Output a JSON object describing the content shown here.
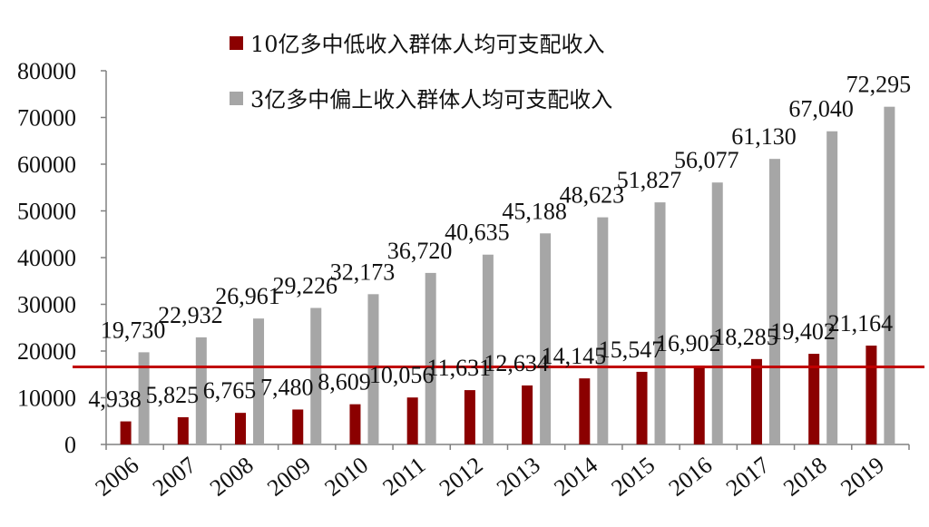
{
  "chart_data": {
    "type": "bar",
    "title": "",
    "xlabel": "",
    "ylabel": "",
    "ylim": [
      0,
      80000
    ],
    "yticks": [
      "0",
      "10000",
      "20000",
      "30000",
      "40000",
      "50000",
      "60000",
      "70000",
      "80000"
    ],
    "categories": [
      "2006",
      "2007",
      "2008",
      "2009",
      "2010",
      "2011",
      "2012",
      "2013",
      "2014",
      "2015",
      "2016",
      "2017",
      "2018",
      "2019"
    ],
    "series": [
      {
        "name": "10亿多中低收入群体人均可支配收入",
        "color": "#8B0000",
        "values": [
          4938,
          5825,
          6765,
          7480,
          8609,
          10056,
          11631,
          12634,
          14145,
          15547,
          16902,
          18285,
          19402,
          21164
        ],
        "labels": [
          "4,938",
          "5,825",
          "6,765",
          "7,480",
          "8,609",
          "10,056",
          "11,631",
          "12,634",
          "14,145",
          "15,547",
          "16,902",
          "18,285",
          "19,402",
          "21,164"
        ]
      },
      {
        "name": "3亿多中偏上收入群体人均可支配收入",
        "color": "#A6A6A6",
        "values": [
          19730,
          22932,
          26961,
          29226,
          32173,
          36720,
          40635,
          45188,
          48623,
          51827,
          56077,
          61130,
          67040,
          72295
        ],
        "labels": [
          "19,730",
          "22,932",
          "26,961",
          "29,226",
          "32,173",
          "36,720",
          "40,635",
          "45,188",
          "48,623",
          "51,827",
          "56,077",
          "61,130",
          "67,040",
          "72,295"
        ]
      }
    ],
    "reference_line": {
      "value": 16600,
      "color": "#C00000"
    },
    "legend_position": "top"
  }
}
